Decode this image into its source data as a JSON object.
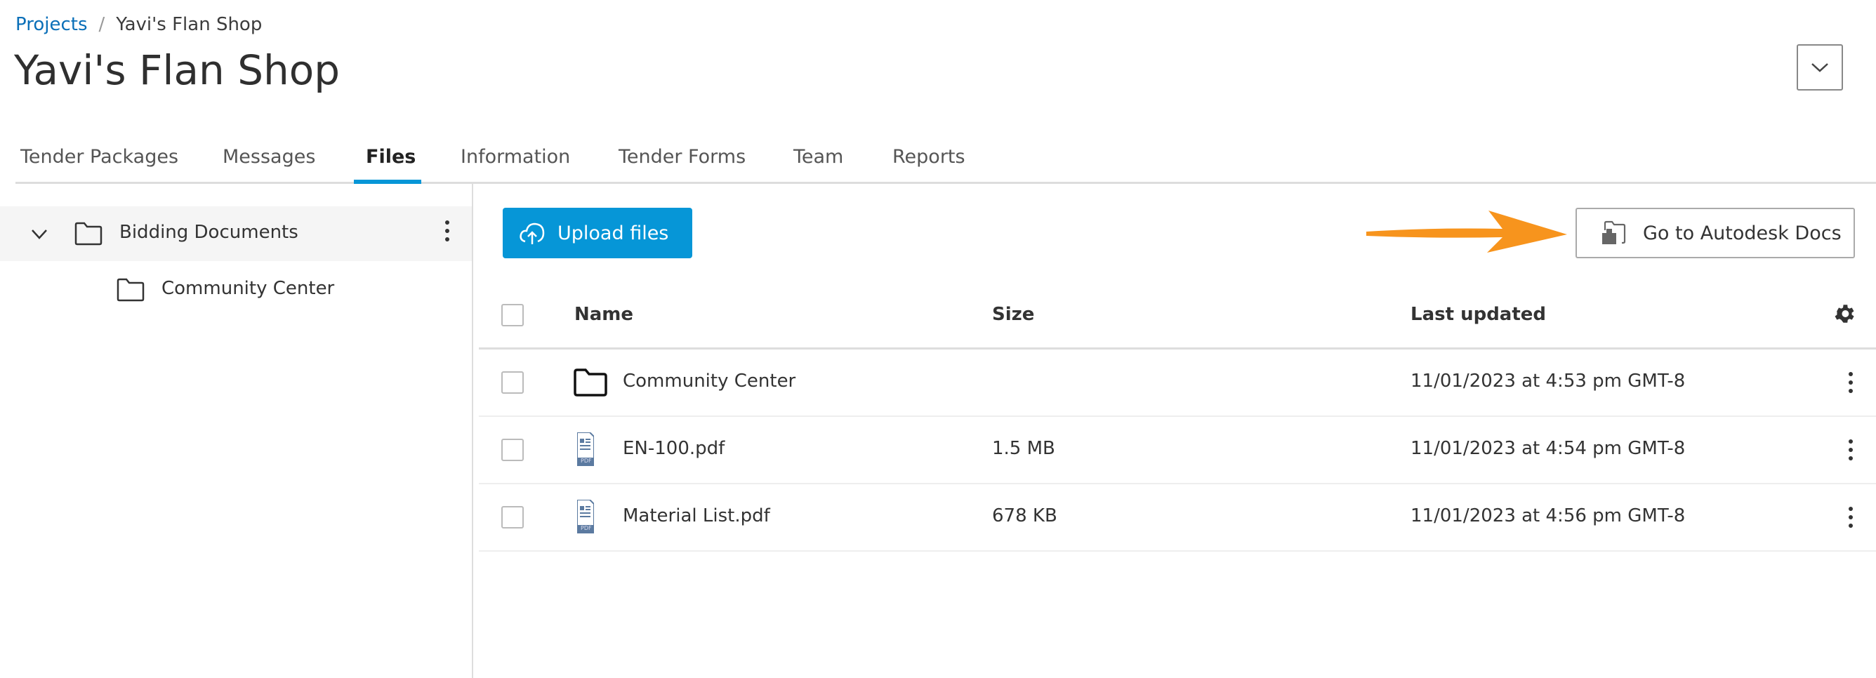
{
  "breadcrumb": {
    "root": "Projects",
    "separator": "/",
    "current": "Yavi's Flan Shop"
  },
  "page_title": "Yavi's Flan Shop",
  "tabs": [
    {
      "label": "Tender Packages"
    },
    {
      "label": "Messages"
    },
    {
      "label": "Files",
      "active": true
    },
    {
      "label": "Information"
    },
    {
      "label": "Tender Forms"
    },
    {
      "label": "Team"
    },
    {
      "label": "Reports"
    }
  ],
  "sidebar": {
    "items": [
      {
        "label": "Bidding Documents",
        "icon": "folder-icon",
        "expanded": true,
        "selected": true
      },
      {
        "label": "Community Center",
        "icon": "folder-icon"
      }
    ]
  },
  "toolbar": {
    "upload_label": "Upload files",
    "docs_label": "Go to Autodesk Docs"
  },
  "table": {
    "columns": [
      "Name",
      "Size",
      "Last updated"
    ],
    "rows": [
      {
        "icon": "folder-icon",
        "name": "Community Center",
        "size": "",
        "updated": "11/01/2023 at 4:53 pm GMT-8"
      },
      {
        "icon": "pdf-icon",
        "name": "EN-100.pdf",
        "size": "1.5 MB",
        "updated": "11/01/2023 at 4:54 pm GMT-8"
      },
      {
        "icon": "pdf-icon",
        "name": "Material List.pdf",
        "size": "678 KB",
        "updated": "11/01/2023 at 4:56 pm GMT-8"
      }
    ]
  },
  "pdf_icon_label": "PDF",
  "colors": {
    "accent": "#0696d7",
    "link": "#0a6fb8",
    "annotation_arrow": "#f7941d"
  }
}
